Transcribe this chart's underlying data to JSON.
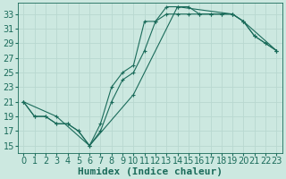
{
  "xlabel": "Humidex (Indice chaleur)",
  "background_color": "#cce8e0",
  "line_color": "#1a6b5a",
  "grid_color": "#b8d8d0",
  "xlim": [
    -0.5,
    23.5
  ],
  "ylim": [
    14.0,
    34.5
  ],
  "xticks": [
    0,
    1,
    2,
    3,
    4,
    5,
    6,
    7,
    8,
    9,
    10,
    11,
    12,
    13,
    14,
    15,
    16,
    17,
    18,
    19,
    20,
    21,
    22,
    23
  ],
  "yticks": [
    15,
    17,
    19,
    21,
    23,
    25,
    27,
    29,
    31,
    33
  ],
  "line1_x": [
    0,
    1,
    2,
    3,
    4,
    5,
    6,
    7,
    8,
    9,
    10,
    11,
    12,
    13,
    14,
    15,
    16,
    17,
    18,
    19,
    20,
    21,
    22,
    23
  ],
  "line1_y": [
    21,
    19,
    19,
    18,
    18,
    17,
    15,
    17,
    21,
    24,
    25,
    28,
    32,
    34,
    34,
    34,
    33,
    33,
    33,
    33,
    32,
    30,
    29,
    28
  ],
  "line2_x": [
    0,
    1,
    2,
    3,
    4,
    5,
    6,
    7,
    8,
    9,
    10,
    11,
    12,
    13,
    14,
    15,
    16,
    17,
    18,
    19,
    20,
    21,
    22,
    23
  ],
  "line2_y": [
    21,
    19,
    19,
    18,
    18,
    17,
    15,
    18,
    23,
    25,
    26,
    32,
    32,
    33,
    33,
    33,
    33,
    33,
    33,
    33,
    32,
    30,
    29,
    28
  ],
  "line3_x": [
    0,
    3,
    6,
    10,
    14,
    19,
    20,
    23
  ],
  "line3_y": [
    21,
    19,
    15,
    22,
    34,
    33,
    32,
    28
  ],
  "font_size": 7,
  "marker_size": 2.0,
  "line_width": 0.8
}
